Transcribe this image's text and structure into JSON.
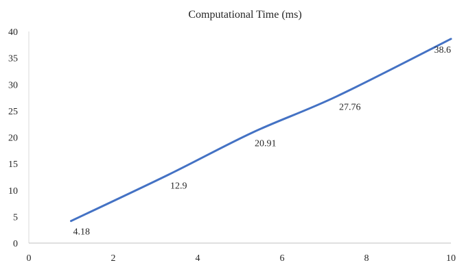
{
  "chart_data": {
    "type": "line",
    "title": "Computational Time (ms)",
    "xlabel": "",
    "ylabel": "",
    "xlim": [
      0,
      10
    ],
    "ylim": [
      0,
      40
    ],
    "xticks": [
      0,
      2,
      4,
      6,
      8,
      10
    ],
    "yticks": [
      0,
      5,
      10,
      15,
      20,
      25,
      30,
      35,
      40
    ],
    "grid": false,
    "legend": "none",
    "series": [
      {
        "color": "#4472C4",
        "x": [
          1,
          3.3,
          5.3,
          7.3,
          10
        ],
        "y": [
          4.18,
          12.9,
          20.91,
          27.76,
          38.6
        ],
        "labels": [
          "4.18",
          "12.9",
          "20.91",
          "27.76",
          "38.6"
        ]
      }
    ]
  }
}
